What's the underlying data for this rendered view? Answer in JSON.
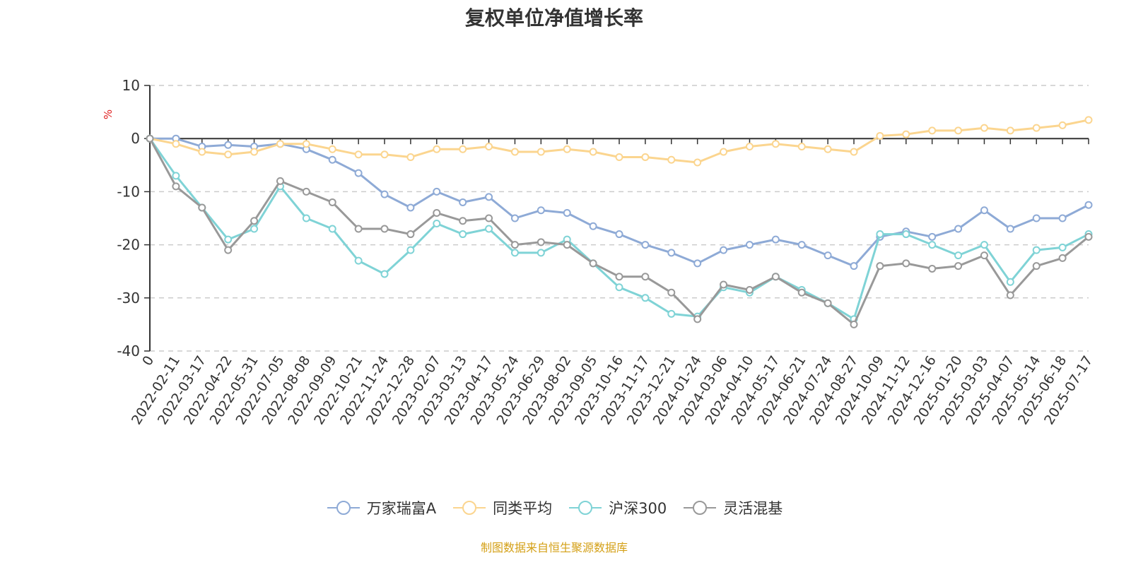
{
  "page": {
    "title": "复权单位净值增长率",
    "source": "制图数据来自恒生聚源数据库"
  },
  "chart_data": {
    "type": "line",
    "title": "复权单位净值增长率",
    "ylabel": "%",
    "ylim": [
      -40,
      10
    ],
    "yticks": [
      10,
      0,
      -10,
      -20,
      -30,
      -40
    ],
    "grid": true,
    "legend": "bottom",
    "categories": [
      "0",
      "2022-02-11",
      "2022-03-17",
      "2022-04-22",
      "2022-05-31",
      "2022-07-05",
      "2022-08-08",
      "2022-09-09",
      "2022-10-21",
      "2022-11-24",
      "2022-12-28",
      "2023-02-07",
      "2023-03-13",
      "2023-04-17",
      "2023-05-24",
      "2023-06-29",
      "2023-08-02",
      "2023-09-05",
      "2023-10-16",
      "2023-11-17",
      "2023-12-21",
      "2024-01-24",
      "2024-03-06",
      "2024-04-10",
      "2024-05-17",
      "2024-06-21",
      "2024-07-24",
      "2024-08-27",
      "2024-10-09",
      "2024-11-12",
      "2024-12-16",
      "2025-01-20",
      "2025-03-03",
      "2025-04-07",
      "2025-05-14",
      "2025-06-18",
      "2025-07-17"
    ],
    "series": [
      {
        "name": "万家瑞富A",
        "color": "#8eaad6",
        "values": [
          0,
          0,
          -1.5,
          -1.2,
          -1.5,
          -1,
          -2,
          -4,
          -6.5,
          -10.5,
          -13,
          -10,
          -12,
          -11,
          -15,
          -13.5,
          -14,
          -16.5,
          -18,
          -20,
          -21.5,
          -23.5,
          -21,
          -20,
          -19,
          -20,
          -22,
          -24,
          -18.5,
          -17.5,
          -18.5,
          -17,
          -13.5,
          -17,
          -15,
          -15,
          -12.5
        ]
      },
      {
        "name": "同类平均",
        "color": "#fbd58f",
        "values": [
          0,
          -1,
          -2.5,
          -3,
          -2.5,
          -1,
          -1,
          -2,
          -3,
          -3,
          -3.5,
          -2,
          -2,
          -1.5,
          -2.5,
          -2.5,
          -2,
          -2.5,
          -3.5,
          -3.5,
          -4,
          -4.5,
          -2.5,
          -1.5,
          -1,
          -1.5,
          -2,
          -2.5,
          0.5,
          0.8,
          1.5,
          1.5,
          2,
          1.5,
          2,
          2.5,
          3.5
        ]
      },
      {
        "name": "沪深300",
        "color": "#7fd3d6",
        "values": [
          0,
          -7,
          -13,
          -19,
          -17,
          -9,
          -15,
          -17,
          -23,
          -25.5,
          -21,
          -16,
          -18,
          -17,
          -21.5,
          -21.5,
          -19,
          -23.5,
          -28,
          -30,
          -33,
          -33.5,
          -28,
          -29,
          -26,
          -28.5,
          -31,
          -34,
          -18,
          -18,
          -20,
          -22,
          -20,
          -27,
          -21,
          -20.5,
          -18
        ]
      },
      {
        "name": "灵活混基",
        "color": "#999999",
        "values": [
          0,
          -9,
          -13,
          -21,
          -15.5,
          -8,
          -10,
          -12,
          -17,
          -17,
          -18,
          -14,
          -15.5,
          -15,
          -20,
          -19.5,
          -20,
          -23.5,
          -26,
          -26,
          -29,
          -34,
          -27.5,
          -28.5,
          -26,
          -29,
          -31,
          -35,
          -24,
          -23.5,
          -24.5,
          -24,
          -22,
          -29.5,
          -24,
          -22.5,
          -18.5
        ]
      }
    ]
  }
}
